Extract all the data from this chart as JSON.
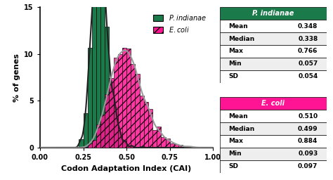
{
  "p_indianae": {
    "mean": 0.348,
    "median": 0.338,
    "max": 0.766,
    "min": 0.057,
    "sd": 0.054,
    "color": "#1a7a4a",
    "curve_color": "#222222",
    "label": "P. indianae"
  },
  "e_coli": {
    "mean": 0.51,
    "median": 0.499,
    "max": 0.884,
    "min": 0.093,
    "sd": 0.097,
    "color": "#ff1493",
    "curve_color": "#777777",
    "label": "E. coli"
  },
  "xlim": [
    0.0,
    1.0
  ],
  "ylim": [
    0,
    15
  ],
  "xlabel": "Codon Adaptation Index (CAI)",
  "ylabel": "% of genes",
  "xticks": [
    0.0,
    0.25,
    0.5,
    0.75,
    1.0
  ],
  "yticks": [
    0,
    5,
    10,
    15
  ],
  "background_color": "#ffffff",
  "table_green_bg": "#1a7a4a",
  "table_pink_bg": "#ff1493",
  "table_text_color": "#ffffff",
  "table_row_bg": "#ffffff"
}
